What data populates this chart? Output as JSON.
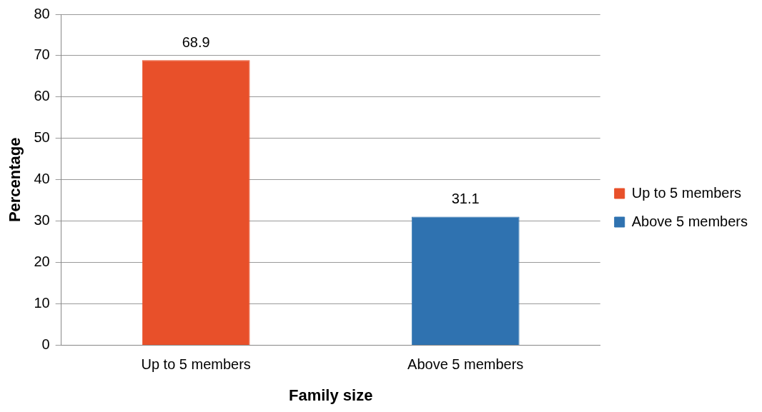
{
  "chart_data": {
    "type": "bar",
    "xlabel": "Family size",
    "ylabel": "Percentage",
    "categories": [
      "Up to 5 members",
      "Above 5 members"
    ],
    "series": [
      {
        "name": "Up to 5 members",
        "color": "#e8502a",
        "values": [
          68.9,
          null
        ]
      },
      {
        "name": "Above 5 members",
        "color": "#2f72b0",
        "values": [
          null,
          31.1
        ]
      }
    ],
    "ylim": [
      0,
      80
    ],
    "yticks": [
      0,
      10,
      20,
      30,
      40,
      50,
      60,
      70,
      80
    ],
    "grid": "y",
    "legend": "right",
    "data_labels": true
  }
}
